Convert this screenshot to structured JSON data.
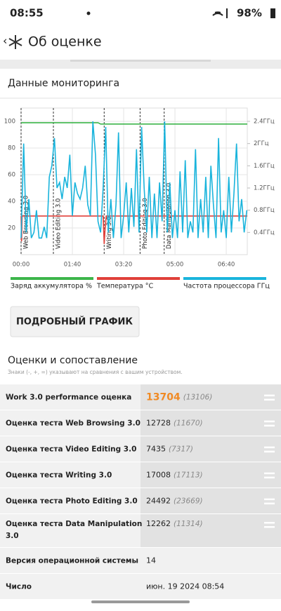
{
  "status_bar": {
    "time": "08:55",
    "battery": "98%"
  },
  "header": {
    "title": "Об оценке"
  },
  "monitoring": {
    "title": "Данные мониторинга",
    "chart": {
      "type": "line",
      "xlim": [
        0,
        441
      ],
      "xticks": [
        {
          "value": 0,
          "label": "00:00"
        },
        {
          "value": 100,
          "label": "01:40"
        },
        {
          "value": 200,
          "label": "03:20"
        },
        {
          "value": 300,
          "label": "05:00"
        },
        {
          "value": 400,
          "label": "06:40"
        }
      ],
      "ylim": [
        0,
        110
      ],
      "yticks": [
        20,
        40,
        60,
        80,
        100
      ],
      "y2lim": [
        0,
        2.64
      ],
      "y2ticks": [
        {
          "value": 0.4,
          "label": "0.4ГГц"
        },
        {
          "value": 0.8,
          "label": "0.8ГГц"
        },
        {
          "value": 1.2,
          "label": "1.2ГГц"
        },
        {
          "value": 1.6,
          "label": "1.6ГГц"
        },
        {
          "value": 2,
          "label": "2ГГц"
        },
        {
          "value": 2.4,
          "label": "2.4ГГц"
        }
      ],
      "grid": true,
      "markers": [
        {
          "x": 0,
          "label": "Web Browsing 3.0"
        },
        {
          "x": 63,
          "label": "Video Editing 3.0"
        },
        {
          "x": 162,
          "label": "Writing 3.0"
        },
        {
          "x": 232,
          "label": "Photo Editing 3.0"
        },
        {
          "x": 279,
          "label": "Data Manipulation 3.0"
        }
      ],
      "series": [
        {
          "name": "Заряд аккумулятора %",
          "color": "#3cb54a",
          "x": [
            0,
            150,
            155,
            441
          ],
          "values": [
            99,
            99,
            98,
            98
          ]
        },
        {
          "name": "Температура °C",
          "color": "#e0403a",
          "x": [
            0,
            1,
            2,
            160,
            162,
            164,
            166,
            441
          ],
          "values": [
            29,
            10,
            29,
            29,
            8,
            20,
            29,
            29
          ]
        },
        {
          "name": "Частота процессора ГГц",
          "color": "#1ab4dc",
          "axis": "y2",
          "x": [
            0,
            5,
            10,
            15,
            20,
            25,
            30,
            35,
            40,
            45,
            50,
            55,
            60,
            65,
            70,
            75,
            80,
            85,
            90,
            95,
            100,
            105,
            110,
            115,
            120,
            125,
            130,
            135,
            140,
            145,
            150,
            155,
            160,
            165,
            170,
            175,
            180,
            185,
            190,
            195,
            200,
            205,
            210,
            215,
            220,
            225,
            230,
            235,
            240,
            245,
            250,
            255,
            260,
            265,
            270,
            275,
            280,
            285,
            290,
            295,
            300,
            305,
            310,
            315,
            320,
            325,
            330,
            335,
            340,
            345,
            350,
            355,
            360,
            365,
            370,
            375,
            380,
            385,
            390,
            395,
            400,
            405,
            410,
            415,
            420,
            425,
            430,
            435,
            440
          ],
          "values": [
            0.3,
            2.0,
            0.4,
            1.0,
            0.3,
            0.4,
            0.8,
            0.3,
            0.3,
            0.5,
            0.3,
            1.4,
            1.6,
            2.1,
            1.2,
            1.3,
            1.0,
            1.4,
            1.2,
            1.8,
            0.7,
            1.3,
            1.1,
            1.0,
            1.2,
            1.6,
            0.9,
            0.7,
            2.4,
            1.8,
            0.6,
            0.4,
            1.2,
            2.3,
            0.4,
            1.0,
            0.3,
            0.9,
            2.2,
            0.3,
            0.7,
            1.3,
            0.4,
            1.2,
            0.5,
            1.9,
            0.4,
            2.3,
            1.2,
            0.4,
            1.4,
            0.3,
            1.1,
            0.3,
            1.3,
            0.6,
            2.4,
            0.4,
            1.3,
            0.3,
            0.8,
            0.3,
            1.5,
            0.4,
            1.7,
            0.3,
            0.6,
            0.4,
            1.9,
            0.3,
            1.0,
            0.4,
            1.4,
            0.3,
            1.6,
            0.9,
            0.3,
            2.1,
            0.4,
            0.8,
            0.3,
            1.4,
            0.4,
            1.1,
            2.0,
            0.6,
            1.0,
            0.4,
            0.8
          ]
        }
      ]
    }
  },
  "button": "ПОДРОБНЫЙ ГРАФИК",
  "scores": {
    "title": "Оценки и сопоставление",
    "note": "Знаки (-, +, =) указывают на сравнения с вашим устройством.",
    "rows": [
      {
        "label": "Work 3.0 performance оценка",
        "value": "13704",
        "compare": "(13106)"
      },
      {
        "label": "Оценка теста Web Browsing 3.0",
        "value": "12728",
        "compare": "(11670)"
      },
      {
        "label": "Оценка теста Video Editing 3.0",
        "value": "7435",
        "compare": "(7317)"
      },
      {
        "label": "Оценка теста Writing 3.0",
        "value": "17008",
        "compare": "(17113)"
      },
      {
        "label": "Оценка теста Photo Editing 3.0",
        "value": "24492",
        "compare": "(23669)"
      },
      {
        "label": "Оценка теста Data Manipulation 3.0",
        "value": "12262",
        "compare": "(11314)"
      },
      {
        "label": "Версия операционной системы",
        "value": "14"
      },
      {
        "label": "Число",
        "value": "июн. 19 2024 08:54"
      }
    ]
  }
}
